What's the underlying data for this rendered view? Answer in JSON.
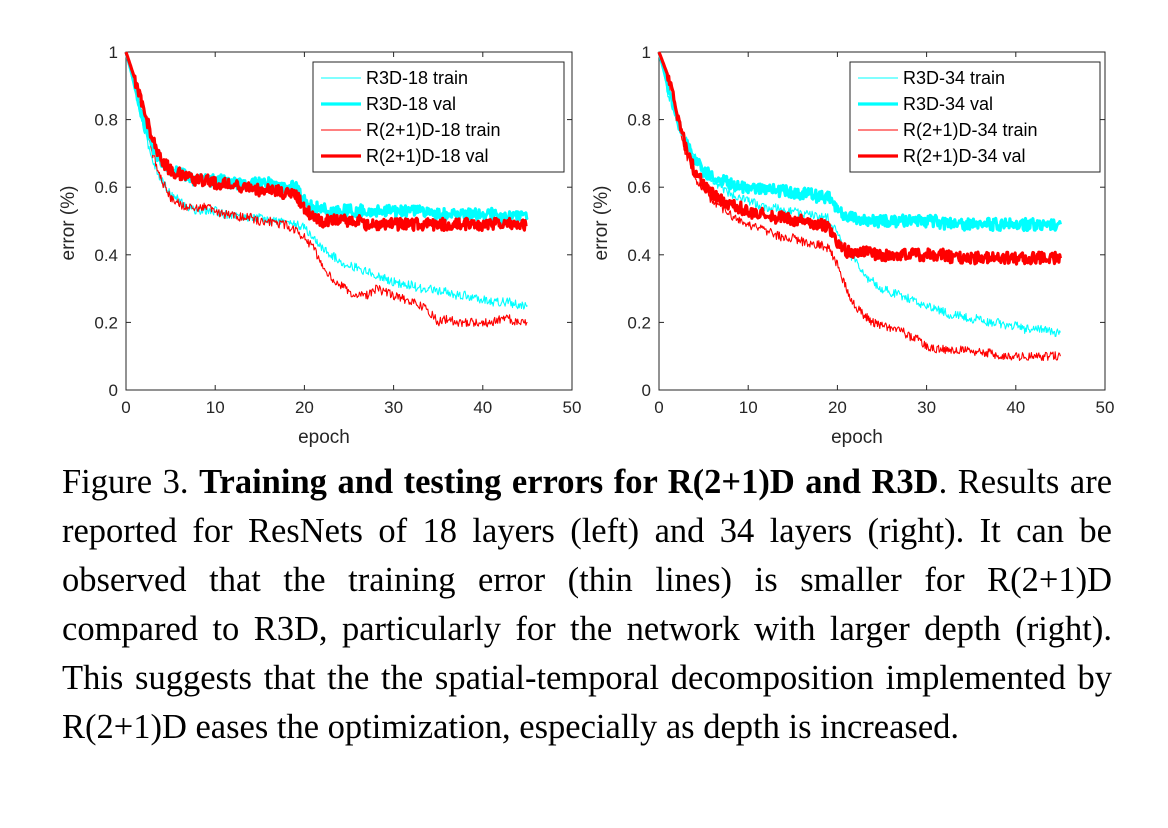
{
  "chart_data": [
    {
      "type": "line",
      "title": "",
      "xlabel": "epoch",
      "ylabel": "error (%)",
      "xlim": [
        0,
        50
      ],
      "ylim": [
        0,
        1
      ],
      "xticks": [
        "0",
        "10",
        "20",
        "30",
        "40",
        "50"
      ],
      "yticks": [
        "0",
        "0.2",
        "0.4",
        "0.6",
        "0.8",
        "1"
      ],
      "grid": false,
      "legend": "top-right",
      "series": [
        {
          "name": "R3D-18 train",
          "color": "#00FFFF",
          "style": "thin",
          "x": [
            0,
            1,
            2,
            3,
            4,
            5,
            6,
            7,
            8,
            9,
            10,
            11,
            12,
            13,
            14,
            15,
            16,
            17,
            18,
            19,
            20,
            21,
            22,
            23,
            24,
            25,
            26,
            27,
            28,
            29,
            30,
            31,
            32,
            33,
            34,
            35,
            36,
            37,
            38,
            39,
            40,
            41,
            42,
            43,
            44,
            45
          ],
          "y": [
            1.0,
            0.88,
            0.77,
            0.68,
            0.62,
            0.58,
            0.56,
            0.54,
            0.53,
            0.53,
            0.53,
            0.52,
            0.52,
            0.51,
            0.51,
            0.51,
            0.5,
            0.5,
            0.5,
            0.49,
            0.48,
            0.45,
            0.42,
            0.4,
            0.38,
            0.37,
            0.36,
            0.35,
            0.34,
            0.33,
            0.32,
            0.31,
            0.31,
            0.3,
            0.3,
            0.29,
            0.29,
            0.28,
            0.28,
            0.27,
            0.27,
            0.26,
            0.26,
            0.26,
            0.25,
            0.25
          ]
        },
        {
          "name": "R3D-18 val",
          "color": "#00FFFF",
          "style": "thick",
          "x": [
            0,
            1,
            2,
            3,
            4,
            5,
            6,
            7,
            8,
            9,
            10,
            11,
            12,
            13,
            14,
            15,
            16,
            17,
            18,
            19,
            20,
            21,
            22,
            23,
            24,
            25,
            26,
            27,
            28,
            29,
            30,
            31,
            32,
            33,
            34,
            35,
            36,
            37,
            38,
            39,
            40,
            41,
            42,
            43,
            44,
            45
          ],
          "y": [
            1.0,
            0.9,
            0.8,
            0.72,
            0.67,
            0.65,
            0.64,
            0.63,
            0.62,
            0.62,
            0.62,
            0.62,
            0.61,
            0.61,
            0.61,
            0.61,
            0.61,
            0.6,
            0.6,
            0.6,
            0.56,
            0.54,
            0.54,
            0.53,
            0.53,
            0.53,
            0.53,
            0.53,
            0.53,
            0.53,
            0.53,
            0.53,
            0.53,
            0.53,
            0.52,
            0.52,
            0.52,
            0.52,
            0.52,
            0.52,
            0.52,
            0.52,
            0.51,
            0.51,
            0.51,
            0.51
          ]
        },
        {
          "name": "R(2+1)D-18 train",
          "color": "#FF0000",
          "style": "thin",
          "x": [
            0,
            1,
            2,
            3,
            4,
            5,
            6,
            7,
            8,
            9,
            10,
            11,
            12,
            13,
            14,
            15,
            16,
            17,
            18,
            19,
            20,
            21,
            22,
            23,
            24,
            25,
            26,
            27,
            28,
            29,
            30,
            31,
            32,
            33,
            34,
            35,
            36,
            37,
            38,
            39,
            40,
            41,
            42,
            43,
            44,
            45
          ],
          "y": [
            1.0,
            0.9,
            0.8,
            0.7,
            0.62,
            0.57,
            0.55,
            0.54,
            0.54,
            0.54,
            0.53,
            0.52,
            0.52,
            0.51,
            0.51,
            0.5,
            0.5,
            0.49,
            0.49,
            0.47,
            0.45,
            0.42,
            0.37,
            0.33,
            0.31,
            0.29,
            0.28,
            0.28,
            0.3,
            0.29,
            0.28,
            0.27,
            0.26,
            0.25,
            0.23,
            0.2,
            0.21,
            0.2,
            0.2,
            0.2,
            0.2,
            0.2,
            0.21,
            0.21,
            0.2,
            0.2
          ]
        },
        {
          "name": "R(2+1)D-18 val",
          "color": "#FF0000",
          "style": "thick",
          "x": [
            0,
            1,
            2,
            3,
            4,
            5,
            6,
            7,
            8,
            9,
            10,
            11,
            12,
            13,
            14,
            15,
            16,
            17,
            18,
            19,
            20,
            21,
            22,
            23,
            24,
            25,
            26,
            27,
            28,
            29,
            30,
            31,
            32,
            33,
            34,
            35,
            36,
            37,
            38,
            39,
            40,
            41,
            42,
            43,
            44,
            45
          ],
          "y": [
            1.0,
            0.92,
            0.83,
            0.74,
            0.68,
            0.65,
            0.64,
            0.63,
            0.62,
            0.62,
            0.61,
            0.61,
            0.61,
            0.6,
            0.6,
            0.59,
            0.59,
            0.59,
            0.58,
            0.58,
            0.54,
            0.51,
            0.5,
            0.5,
            0.5,
            0.5,
            0.5,
            0.49,
            0.49,
            0.49,
            0.49,
            0.49,
            0.49,
            0.49,
            0.49,
            0.49,
            0.49,
            0.49,
            0.49,
            0.49,
            0.49,
            0.49,
            0.49,
            0.49,
            0.49,
            0.49
          ]
        }
      ]
    },
    {
      "type": "line",
      "title": "",
      "xlabel": "epoch",
      "ylabel": "error (%)",
      "xlim": [
        0,
        50
      ],
      "ylim": [
        0,
        1
      ],
      "xticks": [
        "0",
        "10",
        "20",
        "30",
        "40",
        "50"
      ],
      "yticks": [
        "0",
        "0.2",
        "0.4",
        "0.6",
        "0.8",
        "1"
      ],
      "grid": false,
      "legend": "top-right",
      "series": [
        {
          "name": "R3D-34 train",
          "color": "#00FFFF",
          "style": "thin",
          "x": [
            0,
            1,
            2,
            3,
            4,
            5,
            6,
            7,
            8,
            9,
            10,
            11,
            12,
            13,
            14,
            15,
            16,
            17,
            18,
            19,
            20,
            21,
            22,
            23,
            24,
            25,
            26,
            27,
            28,
            29,
            30,
            31,
            32,
            33,
            34,
            35,
            36,
            37,
            38,
            39,
            40,
            41,
            42,
            43,
            44,
            45
          ],
          "y": [
            1.0,
            0.88,
            0.8,
            0.74,
            0.69,
            0.65,
            0.62,
            0.6,
            0.58,
            0.57,
            0.56,
            0.55,
            0.54,
            0.54,
            0.53,
            0.53,
            0.52,
            0.52,
            0.51,
            0.51,
            0.46,
            0.41,
            0.38,
            0.34,
            0.32,
            0.3,
            0.29,
            0.28,
            0.27,
            0.26,
            0.25,
            0.24,
            0.23,
            0.22,
            0.22,
            0.21,
            0.21,
            0.2,
            0.2,
            0.19,
            0.19,
            0.18,
            0.18,
            0.18,
            0.17,
            0.17
          ]
        },
        {
          "name": "R3D-34 val",
          "color": "#00FFFF",
          "style": "thick",
          "x": [
            0,
            1,
            2,
            3,
            4,
            5,
            6,
            7,
            8,
            9,
            10,
            11,
            12,
            13,
            14,
            15,
            16,
            17,
            18,
            19,
            20,
            21,
            22,
            23,
            24,
            25,
            26,
            27,
            28,
            29,
            30,
            31,
            32,
            33,
            34,
            35,
            36,
            37,
            38,
            39,
            40,
            41,
            42,
            43,
            44,
            45
          ],
          "y": [
            1.0,
            0.9,
            0.8,
            0.73,
            0.68,
            0.65,
            0.63,
            0.62,
            0.61,
            0.6,
            0.6,
            0.6,
            0.59,
            0.59,
            0.59,
            0.58,
            0.58,
            0.58,
            0.57,
            0.57,
            0.53,
            0.51,
            0.51,
            0.5,
            0.5,
            0.5,
            0.5,
            0.5,
            0.5,
            0.5,
            0.5,
            0.5,
            0.49,
            0.49,
            0.49,
            0.49,
            0.49,
            0.49,
            0.49,
            0.49,
            0.49,
            0.49,
            0.49,
            0.49,
            0.49,
            0.49
          ]
        },
        {
          "name": "R(2+1)D-34 train",
          "color": "#FF0000",
          "style": "thin",
          "x": [
            0,
            1,
            2,
            3,
            4,
            5,
            6,
            7,
            8,
            9,
            10,
            11,
            12,
            13,
            14,
            15,
            16,
            17,
            18,
            19,
            20,
            21,
            22,
            23,
            24,
            25,
            26,
            27,
            28,
            29,
            30,
            31,
            32,
            33,
            34,
            35,
            36,
            37,
            38,
            39,
            40,
            41,
            42,
            43,
            44,
            45
          ],
          "y": [
            1.0,
            0.92,
            0.8,
            0.7,
            0.63,
            0.59,
            0.56,
            0.54,
            0.52,
            0.5,
            0.49,
            0.48,
            0.47,
            0.46,
            0.45,
            0.45,
            0.44,
            0.43,
            0.43,
            0.42,
            0.37,
            0.3,
            0.25,
            0.22,
            0.2,
            0.19,
            0.18,
            0.18,
            0.16,
            0.15,
            0.13,
            0.12,
            0.12,
            0.12,
            0.12,
            0.11,
            0.11,
            0.11,
            0.1,
            0.1,
            0.1,
            0.1,
            0.1,
            0.1,
            0.1,
            0.1
          ]
        },
        {
          "name": "R(2+1)D-34 val",
          "color": "#FF0000",
          "style": "thick",
          "x": [
            0,
            1,
            2,
            3,
            4,
            5,
            6,
            7,
            8,
            9,
            10,
            11,
            12,
            13,
            14,
            15,
            16,
            17,
            18,
            19,
            20,
            21,
            22,
            23,
            24,
            25,
            26,
            27,
            28,
            29,
            30,
            31,
            32,
            33,
            34,
            35,
            36,
            37,
            38,
            39,
            40,
            41,
            42,
            43,
            44,
            45
          ],
          "y": [
            1.0,
            0.93,
            0.82,
            0.72,
            0.65,
            0.61,
            0.58,
            0.56,
            0.55,
            0.54,
            0.53,
            0.52,
            0.52,
            0.51,
            0.51,
            0.5,
            0.5,
            0.49,
            0.49,
            0.48,
            0.44,
            0.41,
            0.41,
            0.41,
            0.4,
            0.4,
            0.4,
            0.4,
            0.4,
            0.4,
            0.4,
            0.4,
            0.4,
            0.39,
            0.39,
            0.39,
            0.39,
            0.39,
            0.39,
            0.39,
            0.39,
            0.39,
            0.39,
            0.39,
            0.39,
            0.39
          ]
        }
      ]
    }
  ],
  "caption": {
    "label": "Figure 3. ",
    "bold": "Training and testing errors for R(2+1)D and R3D",
    "period": ".",
    "text": " Results are reported for ResNets of 18 layers (left) and 34 layers (right). It can be observed that the training error (thin lines) is smaller for R(2+1)D compared to R3D, particularly for the network with larger depth (right). This suggests that the the spatial-temporal decomposition implemented by R(2+1)D eases the optimization, especially as depth is increased."
  }
}
